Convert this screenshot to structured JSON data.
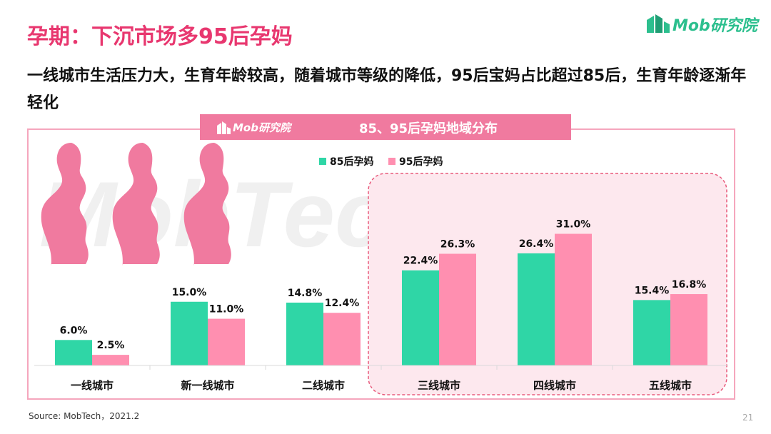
{
  "title": "孕期：下沉市场多95后孕妈",
  "subtitle": "一线城市生活压力大，生育年龄较高，随着城市等级的降低，95后宝妈占比超过85后，生育年龄逐渐年轻化",
  "logo": "Mob研究院",
  "watermark": "MobTech",
  "source": "Source:  MobTech，2021.2",
  "page_number": "21",
  "colors": {
    "title": "#e8376f",
    "series_85": "#2fd6a6",
    "series_95": "#ff8fb0",
    "highlight_bg": "#fde8ee",
    "highlight_border": "#e85a7c"
  },
  "chart_data": {
    "type": "bar",
    "title": "85、95后孕妈地域分布",
    "categories": [
      "一线城市",
      "新一线城市",
      "二线城市",
      "三线城市",
      "四线城市",
      "五线城市"
    ],
    "series": [
      {
        "name": "85后孕妈",
        "values": [
          6.0,
          15.0,
          14.8,
          22.4,
          26.4,
          15.4
        ]
      },
      {
        "name": "95后孕妈",
        "values": [
          2.5,
          11.0,
          12.4,
          26.3,
          31.0,
          16.8
        ]
      }
    ],
    "value_labels": [
      [
        "6.0%",
        "15.0%",
        "14.8%",
        "22.4%",
        "26.4%",
        "15.4%"
      ],
      [
        "2.5%",
        "11.0%",
        "12.4%",
        "26.3%",
        "31.0%",
        "16.8%"
      ]
    ],
    "unit": "%",
    "ylim": [
      0,
      40
    ],
    "grid": false,
    "legend": "top-center",
    "highlight_categories": [
      "三线城市",
      "四线城市",
      "五线城市"
    ]
  }
}
